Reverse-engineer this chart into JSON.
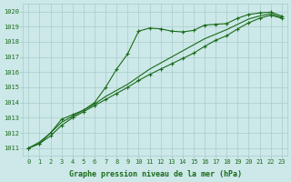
{
  "x": [
    0,
    1,
    2,
    3,
    4,
    5,
    6,
    7,
    8,
    9,
    10,
    11,
    12,
    13,
    14,
    15,
    16,
    17,
    18,
    19,
    20,
    21,
    22,
    23
  ],
  "line1_markers": [
    1011.0,
    1011.3,
    1012.0,
    1012.9,
    1013.2,
    1013.5,
    1014.0,
    1015.0,
    1016.2,
    1017.2,
    1018.7,
    1018.9,
    1018.85,
    1018.7,
    1018.65,
    1018.75,
    1019.1,
    1019.15,
    1019.2,
    1019.55,
    1019.8,
    1019.9,
    1019.95,
    1019.7
  ],
  "line2_smooth": [
    1011.0,
    1011.4,
    1012.0,
    1012.7,
    1013.1,
    1013.5,
    1013.9,
    1014.4,
    1014.8,
    1015.2,
    1015.7,
    1016.2,
    1016.6,
    1017.0,
    1017.4,
    1017.8,
    1018.2,
    1018.5,
    1018.8,
    1019.15,
    1019.5,
    1019.7,
    1019.85,
    1019.6
  ],
  "line3_markers": [
    1011.0,
    1011.3,
    1011.8,
    1012.5,
    1013.0,
    1013.4,
    1013.8,
    1014.2,
    1014.6,
    1015.0,
    1015.45,
    1015.85,
    1016.2,
    1016.55,
    1016.9,
    1017.25,
    1017.7,
    1018.1,
    1018.4,
    1018.85,
    1019.25,
    1019.55,
    1019.75,
    1019.55
  ],
  "line_color": "#1a6b1a",
  "bg_color": "#cce8e8",
  "grid_color": "#aacccc",
  "text_color": "#1a6b1a",
  "ylabel_vals": [
    1011,
    1012,
    1013,
    1014,
    1015,
    1016,
    1017,
    1018,
    1019,
    1020
  ],
  "ylim": [
    1010.5,
    1020.5
  ],
  "xlim": [
    -0.5,
    23.5
  ],
  "xlabel": "Graphe pression niveau de la mer (hPa)"
}
